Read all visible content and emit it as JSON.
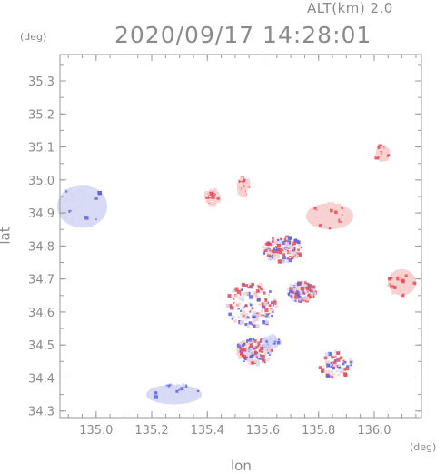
{
  "header": {
    "altitude_label": "ALT(km) 2.0",
    "timestamp": "2020/09/17 14:28:01"
  },
  "chart_data": {
    "type": "heatmap",
    "title": "2020/09/17 14:28:01",
    "xlabel": "lon",
    "ylabel": "lat",
    "x_unit": "(deg)",
    "y_unit": "(deg)",
    "xlim": [
      134.87,
      136.17
    ],
    "ylim": [
      34.28,
      35.38
    ],
    "x_ticks": [
      "135.0",
      "135.2",
      "135.4",
      "135.6",
      "135.8",
      "136.0"
    ],
    "y_ticks": [
      "34.3",
      "34.4",
      "34.5",
      "34.6",
      "34.7",
      "34.8",
      "34.9",
      "35.0",
      "35.1",
      "35.2",
      "35.3"
    ],
    "colors": {
      "positive": "#e84a55",
      "negative": "#5a63e0",
      "weak_negative": "#d6d8f5",
      "weak_positive": "#f8d0d0"
    },
    "echo_regions": [
      {
        "lon": 134.95,
        "lat": 34.92,
        "w": 0.18,
        "h": 0.13,
        "sign": "neg",
        "intensity": "weak"
      },
      {
        "lon": 135.28,
        "lat": 34.35,
        "w": 0.2,
        "h": 0.06,
        "sign": "neg",
        "intensity": "weak"
      },
      {
        "lon": 135.84,
        "lat": 34.89,
        "w": 0.17,
        "h": 0.08,
        "sign": "pos",
        "intensity": "weak"
      },
      {
        "lon": 136.1,
        "lat": 34.69,
        "w": 0.1,
        "h": 0.08,
        "sign": "pos",
        "intensity": "weak"
      },
      {
        "lon": 136.03,
        "lat": 35.08,
        "w": 0.05,
        "h": 0.05,
        "sign": "pos",
        "intensity": "weak"
      },
      {
        "lon": 135.56,
        "lat": 34.62,
        "w": 0.18,
        "h": 0.14,
        "sign": "mixed",
        "intensity": "strong"
      },
      {
        "lon": 135.57,
        "lat": 34.48,
        "w": 0.13,
        "h": 0.08,
        "sign": "mixed",
        "intensity": "strong"
      },
      {
        "lon": 135.74,
        "lat": 34.66,
        "w": 0.1,
        "h": 0.06,
        "sign": "mixed",
        "intensity": "strong"
      },
      {
        "lon": 135.86,
        "lat": 34.44,
        "w": 0.12,
        "h": 0.08,
        "sign": "mixed",
        "intensity": "medium"
      },
      {
        "lon": 135.67,
        "lat": 34.79,
        "w": 0.14,
        "h": 0.08,
        "sign": "mixed",
        "intensity": "strong"
      },
      {
        "lon": 135.53,
        "lat": 34.98,
        "w": 0.04,
        "h": 0.06,
        "sign": "pos",
        "intensity": "medium"
      },
      {
        "lon": 135.42,
        "lat": 34.95,
        "w": 0.05,
        "h": 0.05,
        "sign": "pos",
        "intensity": "medium"
      },
      {
        "lon": 135.63,
        "lat": 34.51,
        "w": 0.06,
        "h": 0.04,
        "sign": "neg",
        "intensity": "medium"
      }
    ]
  }
}
